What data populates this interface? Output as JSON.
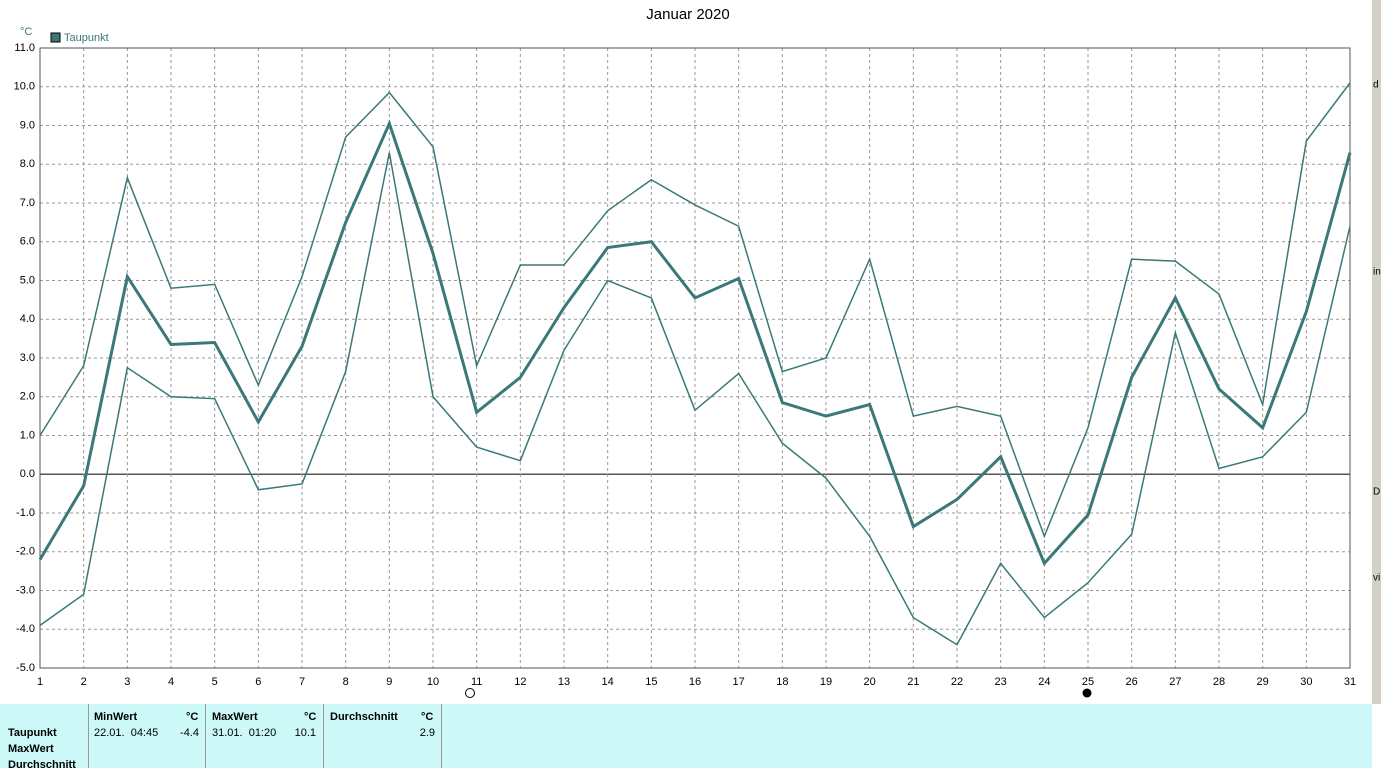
{
  "chart_data": {
    "type": "line",
    "title": "Januar 2020",
    "y_unit": "°C",
    "categories": [
      "1",
      "2",
      "3",
      "4",
      "5",
      "6",
      "7",
      "8",
      "9",
      "10",
      "11",
      "12",
      "13",
      "14",
      "15",
      "16",
      "17",
      "18",
      "19",
      "20",
      "21",
      "22",
      "23",
      "24",
      "25",
      "26",
      "27",
      "28",
      "29",
      "30",
      "31"
    ],
    "series": [
      {
        "name": "Taupunkt",
        "color": "#3b7878",
        "values": [
          -2.2,
          -0.3,
          5.1,
          3.35,
          3.4,
          1.35,
          3.3,
          6.5,
          9.05,
          5.7,
          1.6,
          2.5,
          4.3,
          5.85,
          6.0,
          4.55,
          5.05,
          1.85,
          1.5,
          1.8,
          -1.35,
          -0.65,
          0.45,
          -2.3,
          -1.05,
          2.5,
          4.55,
          2.2,
          1.2,
          4.2,
          8.3
        ]
      },
      {
        "color": "#3b7878",
        "values": [
          1.0,
          2.8,
          7.65,
          4.8,
          4.9,
          2.3,
          5.1,
          8.7,
          9.85,
          8.45,
          2.8,
          5.4,
          5.4,
          6.8,
          7.6,
          6.95,
          6.4,
          2.65,
          3.0,
          5.55,
          1.5,
          1.75,
          1.5,
          -1.6,
          1.2,
          5.55,
          5.5,
          4.65,
          1.8,
          8.6,
          10.1
        ]
      },
      {
        "color": "#3b7878",
        "values": [
          -3.9,
          -3.1,
          2.75,
          2.0,
          1.95,
          -0.4,
          -0.25,
          2.65,
          8.3,
          2.0,
          0.7,
          0.35,
          3.2,
          5.0,
          4.55,
          1.65,
          2.6,
          0.8,
          -0.1,
          -1.6,
          -3.7,
          -4.4,
          -2.3,
          -3.7,
          -2.8,
          -1.55,
          3.65,
          0.15,
          0.45,
          1.6,
          6.4
        ]
      }
    ],
    "ylim": [
      -5,
      11
    ],
    "yticks": [
      {
        "value": -5,
        "label": "-5.0"
      },
      {
        "value": -4,
        "label": "-4.0"
      },
      {
        "value": -3,
        "label": "-3.0"
      },
      {
        "value": -2,
        "label": "-2.0"
      },
      {
        "value": -1,
        "label": "-1.0"
      },
      {
        "value": 0,
        "label": "0.0"
      },
      {
        "value": 1,
        "label": "1.0"
      },
      {
        "value": 2,
        "label": "2.0"
      },
      {
        "value": 3,
        "label": "3.0"
      },
      {
        "value": 4,
        "label": "4.0"
      },
      {
        "value": 5,
        "label": "5.0"
      },
      {
        "value": 6,
        "label": "6.0"
      },
      {
        "value": 7,
        "label": "7.0"
      },
      {
        "value": 8,
        "label": "8.0"
      },
      {
        "value": 9,
        "label": "9.0"
      },
      {
        "value": 10,
        "label": "10.0"
      },
      {
        "value": 11,
        "label": "11.0"
      }
    ],
    "grid": true,
    "legend": "top-left"
  },
  "table": {
    "row_labels": [
      "Taupunkt",
      "MaxWert",
      "Durchschnitt"
    ],
    "headers": [
      "MinWert",
      "°C",
      "MaxWert",
      "°C",
      "Durchschnitt",
      "°C"
    ],
    "rows": [
      [
        "22.01.  04:45",
        -4.4,
        "31.01.  01:20",
        10.1,
        2.9
      ]
    ]
  },
  "side_text": [
    "d",
    "in",
    "D",
    "vi"
  ]
}
